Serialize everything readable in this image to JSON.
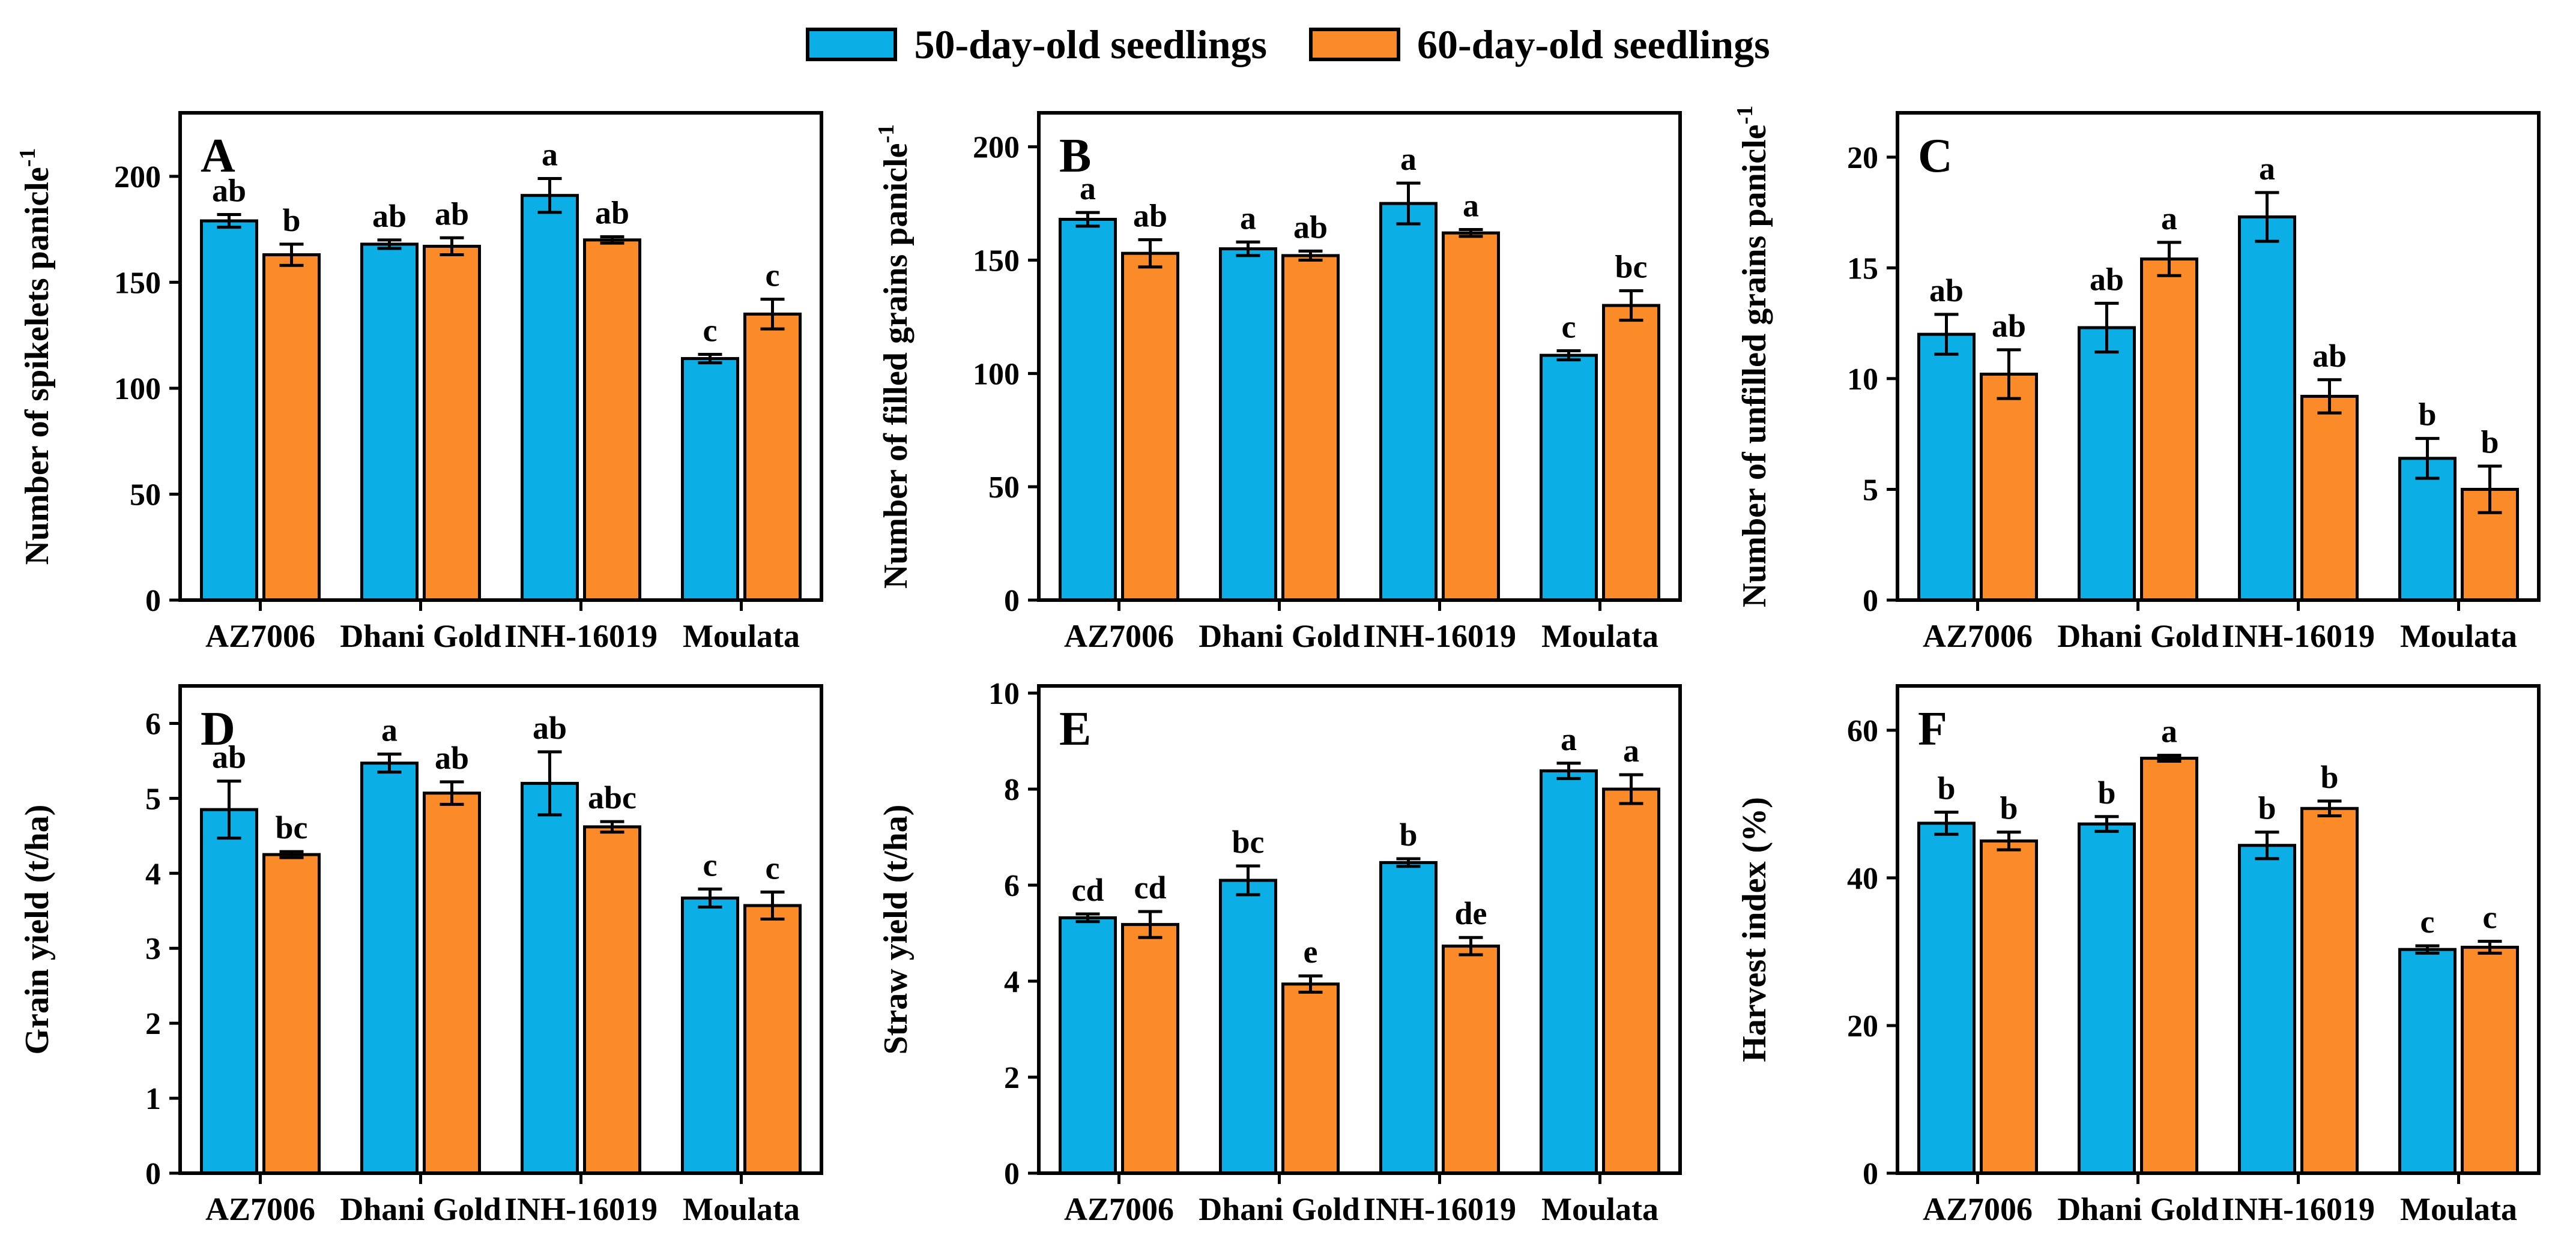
{
  "figure": {
    "legend": [
      {
        "label": "50-day-old seedlings",
        "color": "#0CAEE6"
      },
      {
        "label": "60-day-old seedlings",
        "color": "#FB8B28"
      }
    ],
    "legend_position": "top",
    "categories": [
      "AZ7006",
      "Dhani Gold",
      "INH-16019",
      "Moulata"
    ]
  },
  "chart_data": [
    {
      "panel": "A",
      "type": "bar",
      "ylabel": "Number of spikelets panicle",
      "ylabel_sup": "-1",
      "ylim": [
        0,
        230
      ],
      "yticks": [
        0,
        50,
        100,
        150,
        200
      ],
      "grid": false,
      "categories": [
        "AZ7006",
        "Dhani Gold",
        "INH-16019",
        "Moulata"
      ],
      "series": [
        {
          "name": "50-day-old seedlings",
          "values": [
            179,
            168,
            191,
            114
          ],
          "errors": [
            3,
            2,
            8,
            2
          ],
          "letters": [
            "ab",
            "ab",
            "a",
            "c"
          ]
        },
        {
          "name": "60-day-old seedlings",
          "values": [
            163,
            167,
            170,
            135
          ],
          "errors": [
            5,
            4,
            1.5,
            7
          ],
          "letters": [
            "b",
            "ab",
            "ab",
            "c"
          ]
        }
      ]
    },
    {
      "panel": "B",
      "type": "bar",
      "ylabel": "Number of filled grains panicle",
      "ylabel_sup": "-1",
      "ylim": [
        0,
        215
      ],
      "yticks": [
        0,
        50,
        100,
        150,
        200
      ],
      "grid": false,
      "categories": [
        "AZ7006",
        "Dhani Gold",
        "INH-16019",
        "Moulata"
      ],
      "series": [
        {
          "name": "50-day-old seedlings",
          "values": [
            168,
            155,
            175,
            108
          ],
          "errors": [
            3,
            3,
            9,
            2
          ],
          "letters": [
            "a",
            "a",
            "a",
            "c"
          ]
        },
        {
          "name": "60-day-old seedlings",
          "values": [
            153,
            152,
            162,
            130
          ],
          "errors": [
            6,
            2,
            1.5,
            6.5
          ],
          "letters": [
            "ab",
            "ab",
            "a",
            "bc"
          ]
        }
      ]
    },
    {
      "panel": "C",
      "type": "bar",
      "ylabel": "Number of unfilled grains panicle",
      "ylabel_sup": "-1",
      "ylim": [
        0,
        22
      ],
      "yticks": [
        0,
        5,
        10,
        15,
        20
      ],
      "grid": false,
      "categories": [
        "AZ7006",
        "Dhani Gold",
        "INH-16019",
        "Moulata"
      ],
      "series": [
        {
          "name": "50-day-old seedlings",
          "values": [
            12.0,
            12.3,
            17.3,
            6.4
          ],
          "errors": [
            0.9,
            1.1,
            1.1,
            0.9
          ],
          "letters": [
            "ab",
            "ab",
            "a",
            "b"
          ]
        },
        {
          "name": "60-day-old seedlings",
          "values": [
            10.2,
            15.4,
            9.2,
            5.0
          ],
          "errors": [
            1.1,
            0.75,
            0.75,
            1.05
          ],
          "letters": [
            "ab",
            "a",
            "ab",
            "b"
          ]
        }
      ]
    },
    {
      "panel": "D",
      "type": "bar",
      "ylabel": "Grain yield (t/ha)",
      "ylabel_sup": "",
      "ylim": [
        0,
        6.5
      ],
      "yticks": [
        0,
        1,
        2,
        3,
        4,
        5,
        6
      ],
      "grid": false,
      "categories": [
        "AZ7006",
        "Dhani Gold",
        "INH-16019",
        "Moulata"
      ],
      "series": [
        {
          "name": "50-day-old seedlings",
          "values": [
            4.85,
            5.47,
            5.2,
            3.67
          ],
          "errors": [
            0.38,
            0.12,
            0.42,
            0.12
          ],
          "letters": [
            "ab",
            "a",
            "ab",
            "c"
          ]
        },
        {
          "name": "60-day-old seedlings",
          "values": [
            4.25,
            5.07,
            4.62,
            3.57
          ],
          "errors": [
            0.04,
            0.15,
            0.07,
            0.18
          ],
          "letters": [
            "bc",
            "ab",
            "abc",
            "c"
          ]
        }
      ]
    },
    {
      "panel": "E",
      "type": "bar",
      "ylabel": "Straw yield (t/ha)",
      "ylabel_sup": "",
      "ylim": [
        0,
        10.15
      ],
      "yticks": [
        0,
        2,
        4,
        6,
        8,
        10
      ],
      "grid": false,
      "categories": [
        "AZ7006",
        "Dhani Gold",
        "INH-16019",
        "Moulata"
      ],
      "series": [
        {
          "name": "50-day-old seedlings",
          "values": [
            5.32,
            6.1,
            6.47,
            8.38
          ],
          "errors": [
            0.08,
            0.3,
            0.08,
            0.16
          ],
          "letters": [
            "cd",
            "bc",
            "b",
            "a"
          ]
        },
        {
          "name": "60-day-old seedlings",
          "values": [
            5.18,
            3.94,
            4.73,
            8.0
          ],
          "errors": [
            0.27,
            0.17,
            0.18,
            0.3
          ],
          "letters": [
            "cd",
            "e",
            "de",
            "a"
          ]
        }
      ]
    },
    {
      "panel": "F",
      "type": "bar",
      "ylabel": "Harvest index (%)",
      "ylabel_sup": "",
      "ylim": [
        0,
        66
      ],
      "yticks": [
        0,
        20,
        40,
        60
      ],
      "grid": false,
      "categories": [
        "AZ7006",
        "Dhani Gold",
        "INH-16019",
        "Moulata"
      ],
      "series": [
        {
          "name": "50-day-old seedlings",
          "values": [
            47.4,
            47.3,
            44.4,
            30.3
          ],
          "errors": [
            1.5,
            1.0,
            1.8,
            0.5
          ],
          "letters": [
            "b",
            "b",
            "b",
            "c"
          ]
        },
        {
          "name": "60-day-old seedlings",
          "values": [
            45.0,
            56.2,
            49.4,
            30.6
          ],
          "errors": [
            1.2,
            0.4,
            1.0,
            0.8
          ],
          "letters": [
            "b",
            "a",
            "b",
            "c"
          ]
        }
      ]
    }
  ]
}
